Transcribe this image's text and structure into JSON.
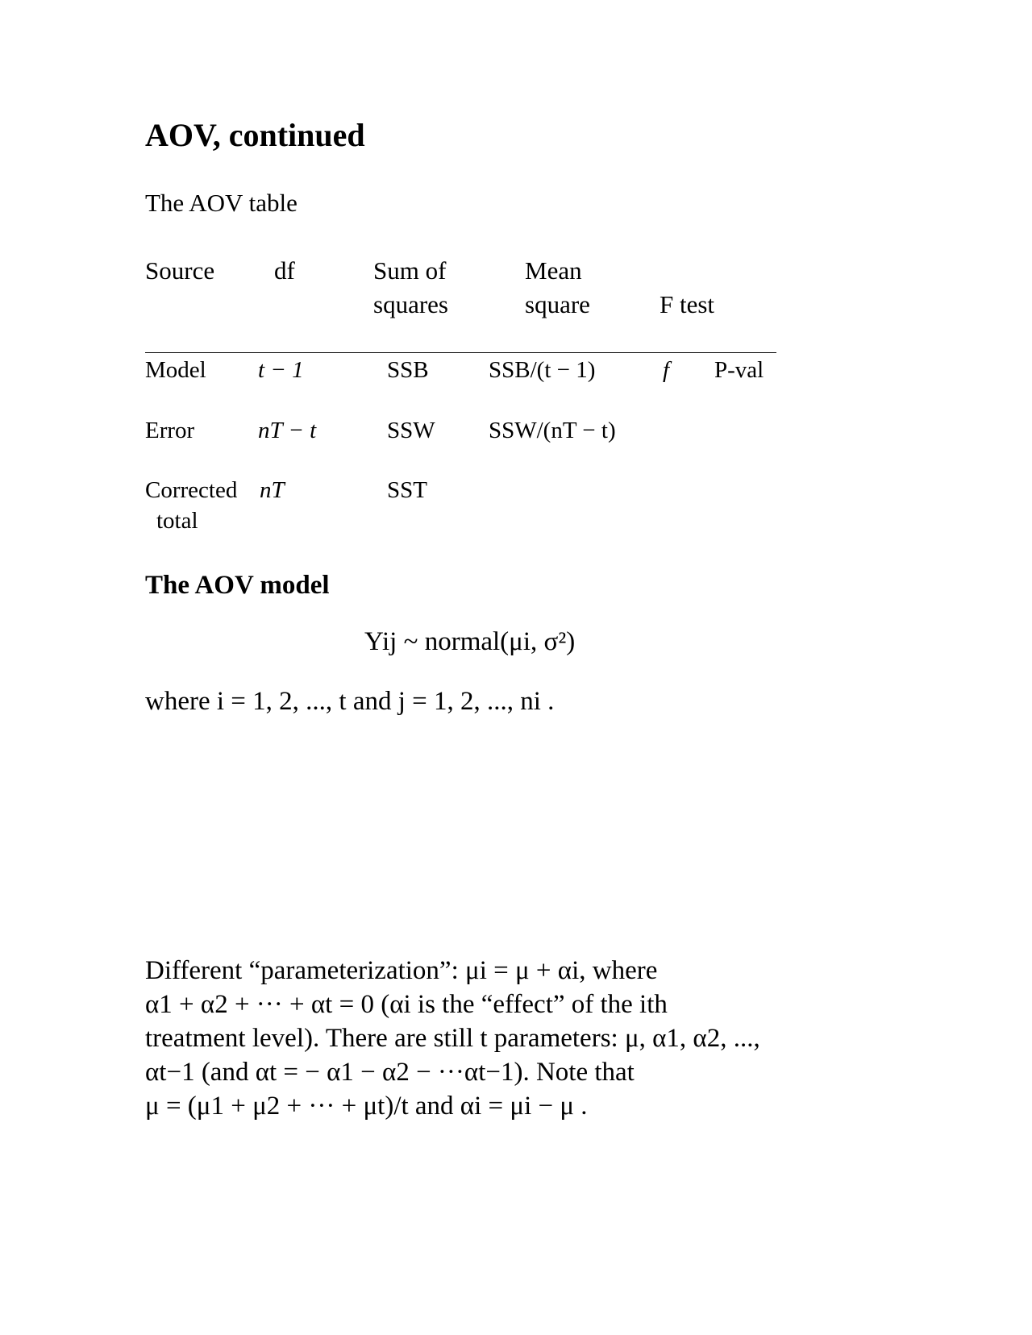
{
  "title": "AOV, continued",
  "table_caption": "The AOV table",
  "table": {
    "headers": {
      "source": "Source",
      "df": "df",
      "ss_1": "Sum of",
      "ss_2": "squares",
      "ms_1": "Mean",
      "ms_2": "square",
      "f": "F test"
    },
    "rows": [
      {
        "source": "Model",
        "df": "t − 1",
        "ss": "SSB",
        "ms": "SSB/(t − 1)",
        "f": "f",
        "p": "P-val"
      },
      {
        "source": "Error",
        "df": "nT − t",
        "ss": "SSW",
        "ms": "SSW/(nT − t)"
      },
      {
        "source_1": "Corrected",
        "source_2": "total",
        "df": "nT",
        "ss": "SST"
      }
    ]
  },
  "model_heading": "The AOV model",
  "model_equation": "Yij ~ normal(μi, σ²)",
  "where_line": "where i = 1, 2, ..., t and j = 1, 2, ..., ni .",
  "paragraph": [
    "Different “parameterization”:  μi = μ + αi, where",
    "α1 + α2 + ··· + αt = 0  (αi is the “effect” of the ith",
    "treatment level).  There are still t parameters:  μ, α1, α2, ...,",
    "αt−1 (and αt =  − α1 − α2 − ···αt−1).  Note that",
    "μ = (μ1 + μ2 + ··· + μt)/t and αi = μi − μ ."
  ]
}
